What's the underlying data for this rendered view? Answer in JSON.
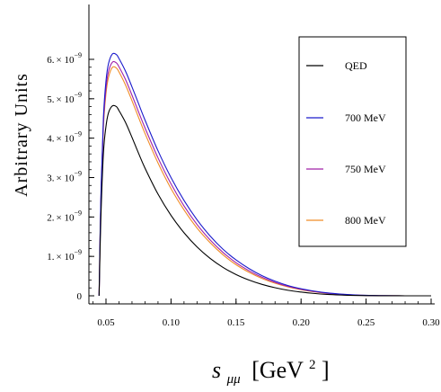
{
  "chart_data": {
    "type": "line",
    "xlabel_main": "s",
    "xlabel_sub": "μμ",
    "xlabel_unit": "[GeV",
    "xlabel_exp": "2",
    "xlabel_close": "]",
    "ylabel": "Arbitrary   Units",
    "xlim": [
      0.04,
      0.3
    ],
    "ylim": [
      0,
      6.2e-09
    ],
    "xticks": [
      {
        "value": 0.05,
        "label": "0.05"
      },
      {
        "value": 0.1,
        "label": "0.10"
      },
      {
        "value": 0.15,
        "label": "0.15"
      },
      {
        "value": 0.2,
        "label": "0.20"
      },
      {
        "value": 0.25,
        "label": "0.25"
      },
      {
        "value": 0.3,
        "label": "0.30"
      }
    ],
    "yticks": [
      {
        "value": 0,
        "mant": "0",
        "times": "",
        "exp": ""
      },
      {
        "value": 1e-09,
        "mant": "1.",
        "times": "× 10",
        "exp": "−9"
      },
      {
        "value": 2e-09,
        "mant": "2.",
        "times": "× 10",
        "exp": "−9"
      },
      {
        "value": 3e-09,
        "mant": "3.",
        "times": "× 10",
        "exp": "−9"
      },
      {
        "value": 4e-09,
        "mant": "4.",
        "times": "× 10",
        "exp": "−9"
      },
      {
        "value": 5e-09,
        "mant": "5.",
        "times": "× 10",
        "exp": "−9"
      },
      {
        "value": 6e-09,
        "mant": "6.",
        "times": "× 10",
        "exp": "−9"
      }
    ],
    "legend_position": "top-right",
    "series": [
      {
        "name": "QED",
        "color": "#000000",
        "x": [
          0.0447,
          0.046,
          0.048,
          0.05,
          0.052,
          0.055,
          0.058,
          0.06,
          0.065,
          0.07,
          0.075,
          0.08,
          0.09,
          0.1,
          0.11,
          0.12,
          0.13,
          0.14,
          0.15,
          0.16,
          0.17,
          0.18,
          0.19,
          0.2,
          0.21,
          0.22,
          0.23,
          0.24,
          0.25,
          0.26,
          0.27,
          0.28,
          0.29,
          0.3
        ],
        "y": [
          0,
          1.9e-09,
          3.6e-09,
          4.3e-09,
          4.65e-09,
          4.82e-09,
          4.8e-09,
          4.7e-09,
          4.4e-09,
          4.02e-09,
          3.62e-09,
          3.24e-09,
          2.58e-09,
          2.04e-09,
          1.6e-09,
          1.24e-09,
          9.5e-10,
          7.2e-10,
          5.4e-10,
          4e-10,
          2.9e-10,
          2.05e-10,
          1.4e-10,
          9.5e-11,
          6e-11,
          3.5e-11,
          2e-11,
          1e-11,
          5e-12,
          2e-12,
          1e-12,
          0,
          0,
          0
        ]
      },
      {
        "name": "700 MeV",
        "color": "#1a1acc",
        "x": [
          0.0447,
          0.046,
          0.048,
          0.05,
          0.052,
          0.055,
          0.058,
          0.06,
          0.065,
          0.07,
          0.075,
          0.08,
          0.09,
          0.1,
          0.11,
          0.12,
          0.13,
          0.14,
          0.15,
          0.16,
          0.17,
          0.18,
          0.19,
          0.2,
          0.21,
          0.22,
          0.23,
          0.24,
          0.25,
          0.26,
          0.27,
          0.28,
          0.29,
          0.3
        ],
        "y": [
          0,
          2.4e-09,
          4.5e-09,
          5.45e-09,
          5.9e-09,
          6.14e-09,
          6.12e-09,
          6.02e-09,
          5.7e-09,
          5.3e-09,
          4.88e-09,
          4.46e-09,
          3.68e-09,
          3e-09,
          2.42e-09,
          1.93e-09,
          1.52e-09,
          1.18e-09,
          9.1e-10,
          6.9e-10,
          5.1e-10,
          3.7e-10,
          2.6e-10,
          1.8e-10,
          1.2e-10,
          7.5e-11,
          4.5e-11,
          2.5e-11,
          1.2e-11,
          5e-12,
          2e-12,
          0,
          0,
          0
        ]
      },
      {
        "name": "750 MeV",
        "color": "#a020a8",
        "x": [
          0.0447,
          0.046,
          0.048,
          0.05,
          0.052,
          0.055,
          0.058,
          0.06,
          0.065,
          0.07,
          0.075,
          0.08,
          0.09,
          0.1,
          0.11,
          0.12,
          0.13,
          0.14,
          0.15,
          0.16,
          0.17,
          0.18,
          0.19,
          0.2,
          0.21,
          0.22,
          0.23,
          0.24,
          0.25,
          0.26,
          0.27,
          0.28,
          0.29,
          0.3
        ],
        "y": [
          0,
          2.32e-09,
          4.36e-09,
          5.26e-09,
          5.7e-09,
          5.93e-09,
          5.91e-09,
          5.81e-09,
          5.49e-09,
          5.09e-09,
          4.67e-09,
          4.26e-09,
          3.5e-09,
          2.84e-09,
          2.28e-09,
          1.81e-09,
          1.42e-09,
          1.1e-09,
          8.4e-10,
          6.35e-10,
          4.7e-10,
          3.4e-10,
          2.4e-10,
          1.65e-10,
          1.1e-10,
          6.8e-11,
          4e-11,
          2.2e-11,
          1e-11,
          4e-12,
          1e-12,
          0,
          0,
          0
        ]
      },
      {
        "name": "800 MeV",
        "color": "#f08c28",
        "x": [
          0.0447,
          0.046,
          0.048,
          0.05,
          0.052,
          0.055,
          0.058,
          0.06,
          0.065,
          0.07,
          0.075,
          0.08,
          0.09,
          0.1,
          0.11,
          0.12,
          0.13,
          0.14,
          0.15,
          0.16,
          0.17,
          0.18,
          0.19,
          0.2,
          0.21,
          0.22,
          0.23,
          0.24,
          0.25,
          0.26,
          0.27,
          0.28,
          0.29,
          0.3
        ],
        "y": [
          0,
          2.26e-09,
          4.25e-09,
          5.13e-09,
          5.55e-09,
          5.8e-09,
          5.78e-09,
          5.68e-09,
          5.35e-09,
          4.95e-09,
          4.53e-09,
          4.12e-09,
          3.37e-09,
          2.72e-09,
          2.18e-09,
          1.72e-09,
          1.35e-09,
          1.04e-09,
          7.9e-10,
          5.95e-10,
          4.4e-10,
          3.2e-10,
          2.25e-10,
          1.55e-10,
          1e-10,
          6.2e-11,
          3.6e-11,
          2e-11,
          9e-12,
          3e-12,
          1e-12,
          0,
          0,
          0
        ]
      }
    ]
  }
}
